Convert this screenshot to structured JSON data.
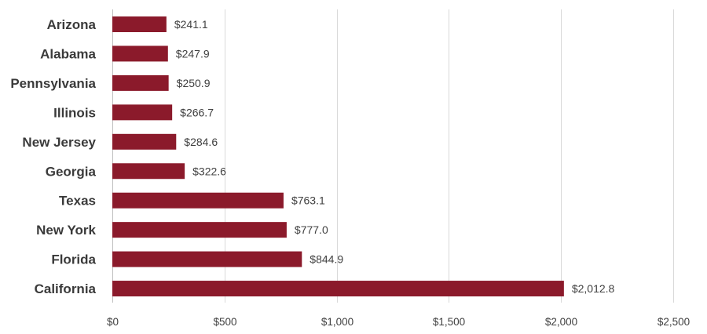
{
  "chart_data": {
    "type": "bar",
    "orientation": "horizontal",
    "title": "",
    "xlabel": "",
    "ylabel": "",
    "categories": [
      "Arizona",
      "Alabama",
      "Pennsylvania",
      "Illinois",
      "New Jersey",
      "Georgia",
      "Texas",
      "New York",
      "Florida",
      "California"
    ],
    "values": [
      241.1,
      247.9,
      250.9,
      266.7,
      284.6,
      322.6,
      763.1,
      777.0,
      844.9,
      2012.8
    ],
    "value_labels": [
      "$241.1",
      "$247.9",
      "$250.9",
      "$266.7",
      "$284.6",
      "$322.6",
      "$763.1",
      "$777.0",
      "$844.9",
      "$2,012.8"
    ],
    "xlim": [
      0,
      2500
    ],
    "x_ticks": [
      0,
      500,
      1000,
      1500,
      2000,
      2500
    ],
    "x_tick_labels": [
      "$0",
      "$500",
      "$1,000",
      "$1,500",
      "$2,000",
      "$2,500"
    ],
    "grid": "vertical",
    "legend": "none",
    "bar_color": "#8b1a2b"
  }
}
